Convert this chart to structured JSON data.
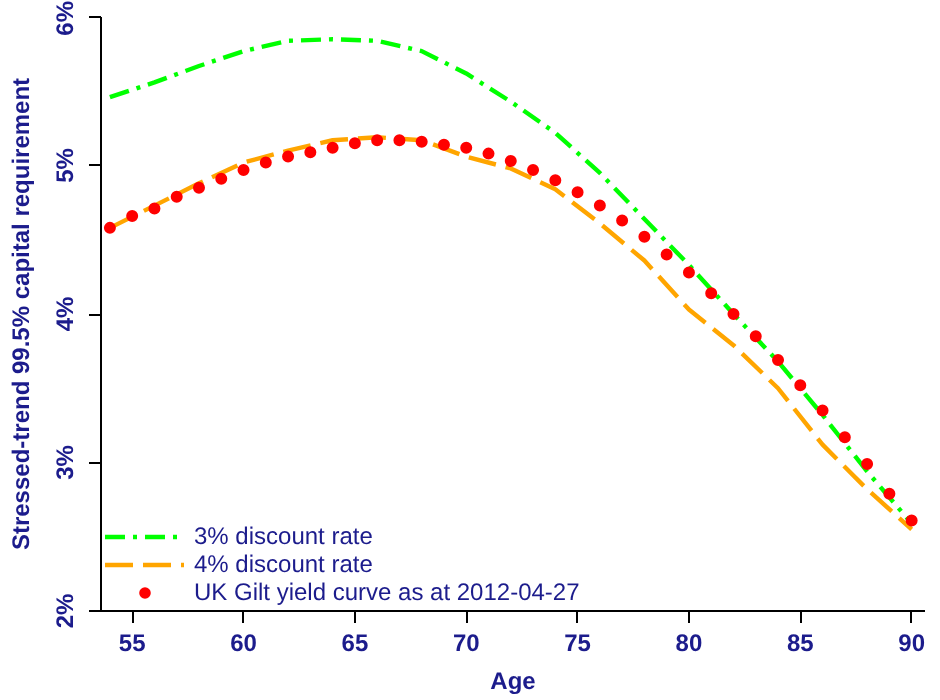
{
  "chart_data": {
    "type": "line",
    "xlabel": "Age",
    "ylabel": "Stressed-trend 99.5% capital requirement",
    "xlim": [
      53.6,
      90.6
    ],
    "xticks": [
      55,
      60,
      65,
      70,
      75,
      80,
      85,
      90
    ],
    "ylim": [
      2,
      6
    ],
    "yticks": [
      {
        "value": 2,
        "label": "2%"
      },
      {
        "value": 3,
        "label": "3%"
      },
      {
        "value": 4,
        "label": "4%"
      },
      {
        "value": 5,
        "label": "5%"
      },
      {
        "value": 6,
        "label": "6%"
      }
    ],
    "grid": false,
    "legend": "bottom left",
    "series": [
      {
        "name": "3% discount rate",
        "color": "#00ff00",
        "line_style": "dashdot",
        "marker": "none",
        "x": [
          54,
          56,
          58,
          60,
          62,
          64,
          66,
          68,
          70,
          72,
          74,
          76,
          78,
          80,
          82,
          84,
          86,
          88,
          90
        ],
        "values": [
          5.46,
          5.56,
          5.67,
          5.77,
          5.84,
          5.85,
          5.84,
          5.77,
          5.62,
          5.43,
          5.22,
          4.95,
          4.64,
          4.33,
          4.0,
          3.68,
          3.32,
          2.94,
          2.59
        ]
      },
      {
        "name": "4% discount rate",
        "color": "#ffa500",
        "line_style": "dashed",
        "marker": "none",
        "x": [
          54,
          56,
          58,
          60,
          62,
          64,
          66,
          68,
          70,
          72,
          74,
          76,
          78,
          80,
          82,
          84,
          86,
          88,
          90
        ],
        "values": [
          4.58,
          4.73,
          4.88,
          5.02,
          5.1,
          5.17,
          5.19,
          5.17,
          5.06,
          4.98,
          4.84,
          4.61,
          4.36,
          4.03,
          3.79,
          3.5,
          3.12,
          2.82,
          2.55
        ]
      },
      {
        "name": "UK Gilt yield curve as at 2012-04-27",
        "type": "scatter",
        "color": "#ff0000",
        "marker": "circle",
        "x": [
          54,
          55,
          56,
          57,
          58,
          59,
          60,
          61,
          62,
          63,
          64,
          65,
          66,
          67,
          68,
          69,
          70,
          71,
          72,
          73,
          74,
          75,
          76,
          77,
          78,
          79,
          80,
          81,
          82,
          83,
          84,
          85,
          86,
          87,
          88,
          89,
          90
        ],
        "values": [
          4.58,
          4.66,
          4.71,
          4.79,
          4.85,
          4.91,
          4.97,
          5.02,
          5.06,
          5.09,
          5.12,
          5.15,
          5.17,
          5.17,
          5.16,
          5.14,
          5.12,
          5.08,
          5.03,
          4.97,
          4.9,
          4.82,
          4.73,
          4.63,
          4.52,
          4.4,
          4.28,
          4.14,
          4.0,
          3.85,
          3.69,
          3.52,
          3.35,
          3.17,
          2.99,
          2.79,
          2.61
        ]
      }
    ]
  }
}
